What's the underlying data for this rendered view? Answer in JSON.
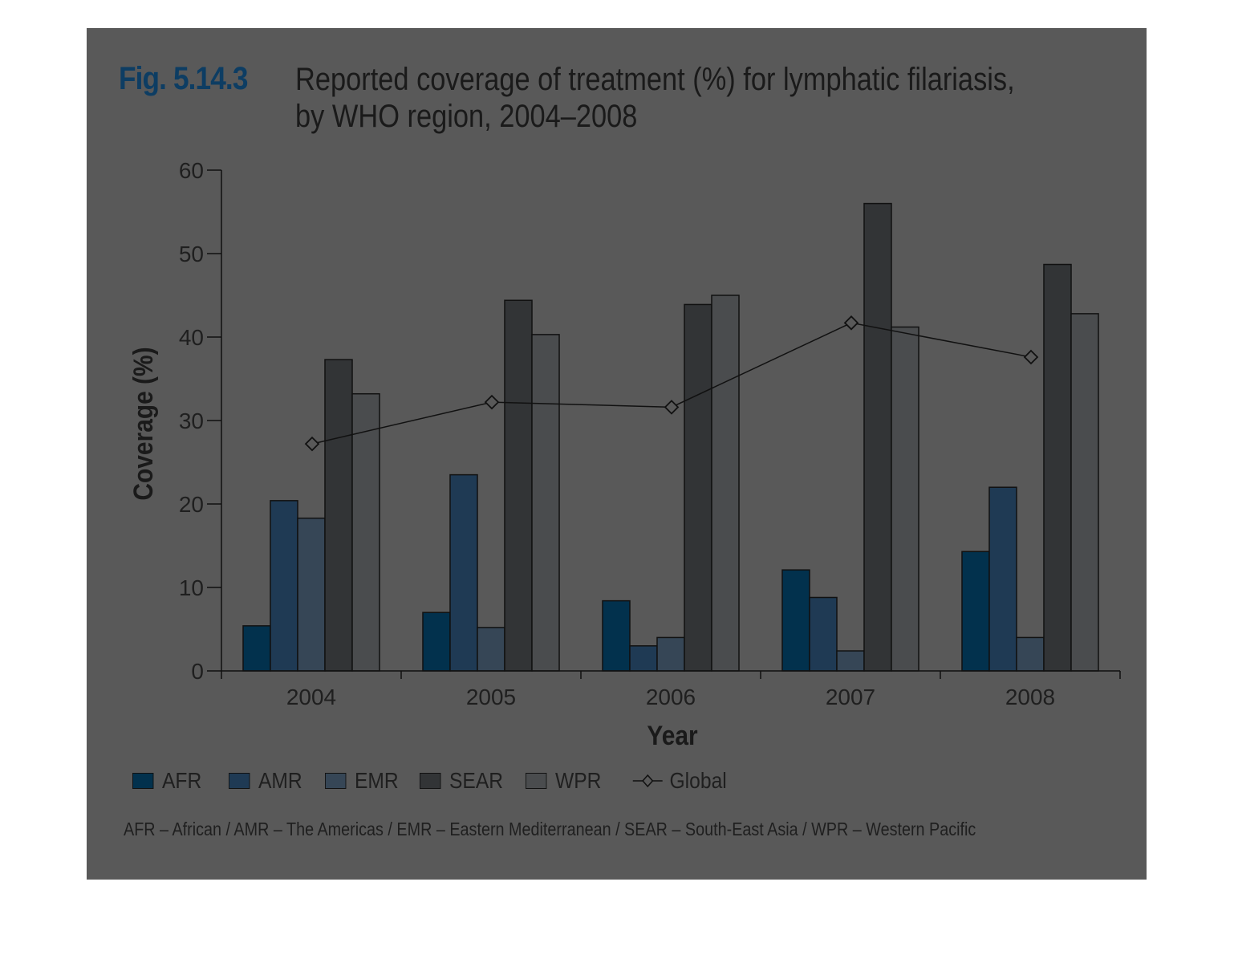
{
  "header": {
    "fig_number": "Fig. 5.14.3",
    "title": "Reported coverage of treatment (%) for lymphatic filariasis,\nby WHO region, 2004–2008"
  },
  "chart_data": {
    "type": "bar",
    "title": "Reported coverage of treatment (%) for lymphatic filariasis, by WHO region, 2004–2008",
    "xlabel": "Year",
    "ylabel": "Coverage (%)",
    "ylim": [
      0,
      60
    ],
    "yticks": [
      "0",
      "10",
      "20",
      "30",
      "40",
      "50",
      "60"
    ],
    "categories": [
      "2004",
      "2005",
      "2006",
      "2007",
      "2008"
    ],
    "series": [
      {
        "name": "AFR",
        "values": [
          5.4,
          7.0,
          8.4,
          12.1,
          14.3
        ],
        "color": "#02314d"
      },
      {
        "name": "AMR",
        "values": [
          20.4,
          23.5,
          3.0,
          8.8,
          22.0
        ],
        "color": "#1f3a54"
      },
      {
        "name": "EMR",
        "values": [
          18.3,
          5.2,
          4.0,
          2.4,
          4.0
        ],
        "color": "#364656"
      },
      {
        "name": "SEAR",
        "values": [
          37.3,
          44.4,
          43.9,
          56.0,
          48.7
        ],
        "color": "#323436"
      },
      {
        "name": "WPR",
        "values": [
          33.2,
          40.3,
          45.0,
          41.2,
          42.8
        ],
        "color": "#4a4c4e"
      }
    ],
    "line_series": {
      "name": "Global",
      "values": [
        27.2,
        32.2,
        31.6,
        41.7,
        37.6
      ],
      "color": "#111111"
    },
    "grid": false,
    "legend_position": "bottom-left"
  },
  "legend": {
    "items": [
      "AFR",
      "AMR",
      "EMR",
      "SEAR",
      "WPR",
      "Global"
    ]
  },
  "footnote": "AFR – African / AMR – The Americas / EMR – Eastern Mediterranean / SEAR – South-East Asia / WPR – Western Pacific"
}
